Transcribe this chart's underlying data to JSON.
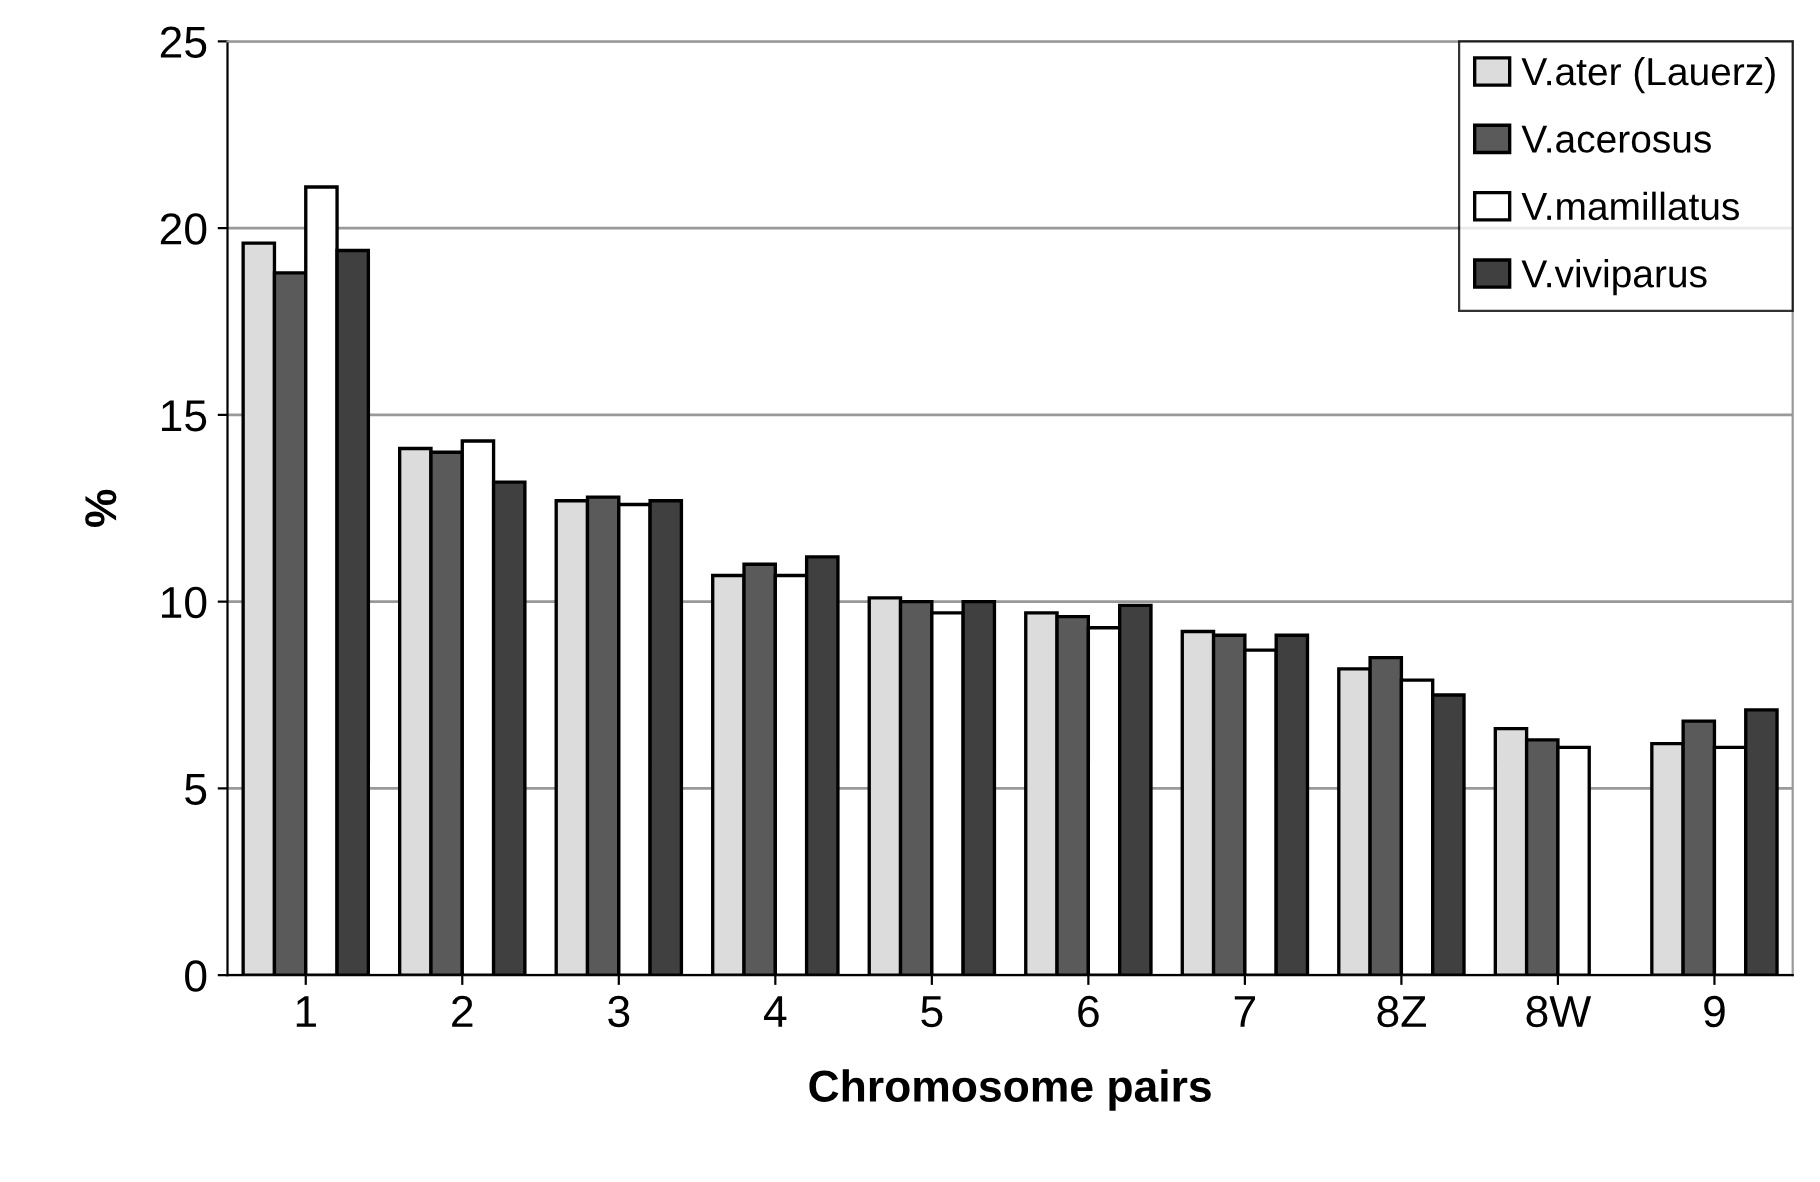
{
  "chart_data": {
    "type": "bar",
    "xlabel": "Chromosome pairs",
    "ylabel": "%",
    "categories": [
      "1",
      "2",
      "3",
      "4",
      "5",
      "6",
      "7",
      "8Z",
      "8W",
      "9"
    ],
    "series": [
      {
        "name": "V.ater (Lauerz)",
        "color": "#dcdcdc",
        "values": [
          19.6,
          14.1,
          12.7,
          10.7,
          10.1,
          9.7,
          9.2,
          8.2,
          6.6,
          6.2
        ]
      },
      {
        "name": "V.acerosus",
        "color": "#5a5a5a",
        "values": [
          18.8,
          14.0,
          12.8,
          11.0,
          10.0,
          9.6,
          9.1,
          8.5,
          6.3,
          6.8
        ]
      },
      {
        "name": "V.mamillatus",
        "color": "#ffffff",
        "values": [
          21.1,
          14.3,
          12.6,
          10.7,
          9.7,
          9.3,
          8.7,
          7.9,
          6.1,
          6.1
        ]
      },
      {
        "name": "V.viviparus",
        "color": "#404040",
        "values": [
          19.4,
          13.2,
          12.7,
          11.2,
          10.0,
          9.9,
          9.1,
          7.5,
          null,
          7.1
        ]
      }
    ],
    "ylim": [
      0,
      25
    ],
    "yticks": [
      0,
      5,
      10,
      15,
      20,
      25
    ],
    "grid": "y",
    "legend": "top right"
  }
}
